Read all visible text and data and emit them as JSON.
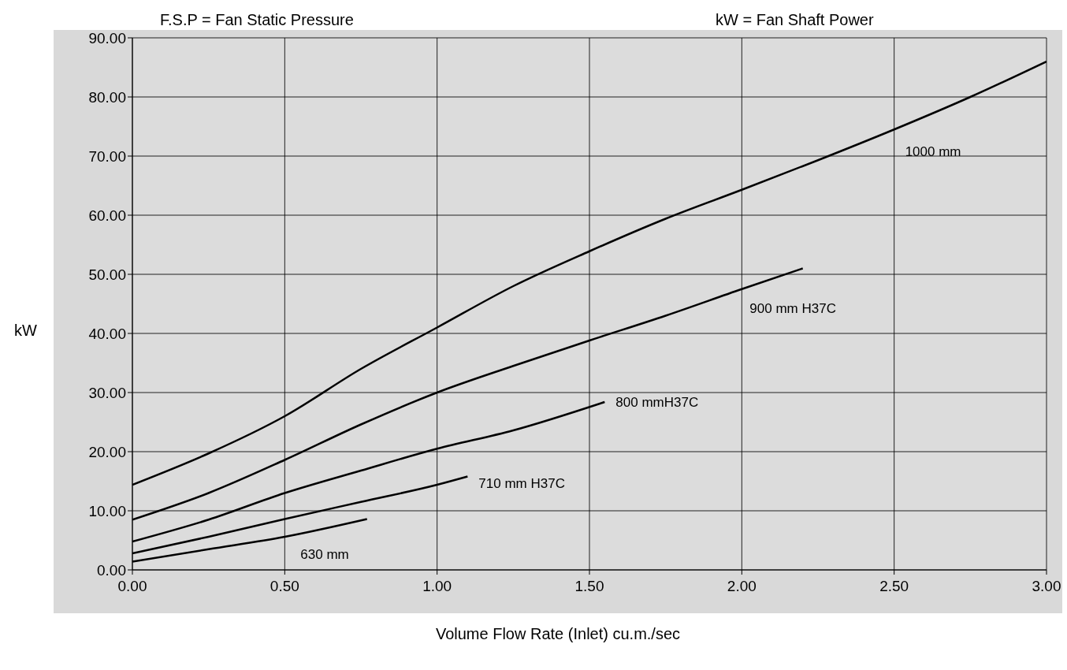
{
  "chart_data": {
    "type": "line",
    "xlabel": "Volume Flow Rate (Inlet) cu.m./sec",
    "ylabel": "kW",
    "annotations": [
      "F.S.P = Fan Static Pressure",
      "kW = Fan Shaft Power"
    ],
    "xlim": [
      0,
      3
    ],
    "ylim": [
      0,
      90
    ],
    "xticks": [
      {
        "value": 0,
        "label": "0.00"
      },
      {
        "value": 0.5,
        "label": "0.50"
      },
      {
        "value": 1,
        "label": "1.00"
      },
      {
        "value": 1.5,
        "label": "1.50"
      },
      {
        "value": 2,
        "label": "2.00"
      },
      {
        "value": 2.5,
        "label": "2.50"
      },
      {
        "value": 3,
        "label": "3.00"
      }
    ],
    "yticks": [
      {
        "value": 0,
        "label": "0.00"
      },
      {
        "value": 10,
        "label": "10.00"
      },
      {
        "value": 20,
        "label": "20.00"
      },
      {
        "value": 30,
        "label": "30.00"
      },
      {
        "value": 40,
        "label": "40.00"
      },
      {
        "value": 50,
        "label": "50.00"
      },
      {
        "value": 60,
        "label": "60.00"
      },
      {
        "value": 70,
        "label": "70.00"
      },
      {
        "value": 80,
        "label": "80.00"
      },
      {
        "value": 90,
        "label": "90.00"
      }
    ],
    "grid": true,
    "legend": false,
    "marker": "none",
    "line_style": "solid",
    "series": [
      {
        "name": "1000  mm",
        "color": "#000000",
        "x": [
          0,
          0.25,
          0.5,
          0.75,
          1,
          1.25,
          1.5,
          1.75,
          2,
          2.25,
          2.5,
          2.75,
          3
        ],
        "values": [
          14.4,
          19.7,
          26,
          34,
          41,
          48,
          53.9,
          59.4,
          64.3,
          69.3,
          74.5,
          80,
          86
        ]
      },
      {
        "name": "900 mm H37C",
        "color": "#000000",
        "x": [
          0,
          0.25,
          0.5,
          0.75,
          1,
          1.25,
          1.5,
          1.75,
          2,
          2.2
        ],
        "values": [
          8.5,
          13,
          18.6,
          24.6,
          30,
          34.5,
          38.8,
          43,
          47.5,
          51
        ]
      },
      {
        "name": "800 mmH37C",
        "color": "#000000",
        "x": [
          0,
          0.25,
          0.5,
          0.75,
          1,
          1.25,
          1.55
        ],
        "values": [
          4.8,
          8.5,
          13,
          16.8,
          20.5,
          23.6,
          28.4
        ]
      },
      {
        "name": "710 mm H37C",
        "color": "#000000",
        "x": [
          0,
          0.25,
          0.5,
          0.75,
          1,
          1.1
        ],
        "values": [
          2.8,
          5.6,
          8.6,
          11.5,
          14.4,
          15.8
        ]
      },
      {
        "name": "630 mm",
        "color": "#000000",
        "x": [
          0,
          0.25,
          0.5,
          0.77
        ],
        "values": [
          1.4,
          3.5,
          5.6,
          8.6
        ]
      }
    ]
  }
}
